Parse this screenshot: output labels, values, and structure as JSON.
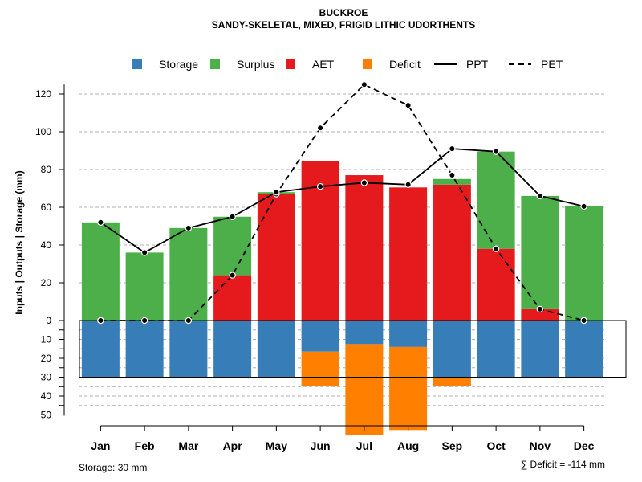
{
  "chart_data": {
    "type": "bar",
    "title": "BUCKROE",
    "subtitle": "SANDY-SKELETAL, MIXED, FRIGID LITHIC UDORTHENTS",
    "ylabel": "Inputs | Outputs | Storage    (mm)",
    "categories": [
      "Jan",
      "Feb",
      "Mar",
      "Apr",
      "May",
      "Jun",
      "Jul",
      "Aug",
      "Sep",
      "Oct",
      "Nov",
      "Dec"
    ],
    "ylim": [
      -50,
      125
    ],
    "yticks_upper": [
      0,
      20,
      40,
      60,
      80,
      100,
      120
    ],
    "yticks_lower": [
      10,
      20,
      30,
      40,
      50
    ],
    "gridlines_upper": [
      20,
      40,
      60,
      80,
      100,
      120
    ],
    "gridlines_lower": [
      5,
      10,
      15,
      20,
      25,
      35,
      40,
      45,
      50
    ],
    "legend": [
      {
        "label": "Storage",
        "kind": "box",
        "color": "#377EB8"
      },
      {
        "label": "Surplus",
        "kind": "box",
        "color": "#4DAF4A"
      },
      {
        "label": "AET",
        "kind": "box",
        "color": "#E41A1C"
      },
      {
        "label": "Deficit",
        "kind": "box",
        "color": "#FF7F00"
      },
      {
        "label": "PPT",
        "kind": "solid"
      },
      {
        "label": "PET",
        "kind": "dashed"
      }
    ],
    "series": [
      {
        "name": "AET",
        "color": "#E41A1C",
        "values": [
          0,
          0,
          0,
          24,
          67,
          84.5,
          77,
          70.5,
          72,
          38,
          6,
          0
        ]
      },
      {
        "name": "Surplus",
        "color": "#4DAF4A",
        "values": [
          52,
          36,
          49,
          31,
          1,
          0,
          0,
          0,
          3,
          51.5,
          60,
          60.5
        ]
      },
      {
        "name": "Storage",
        "color": "#377EB8",
        "values": [
          30,
          30,
          30,
          30,
          30,
          16.5,
          12.5,
          14,
          30,
          30,
          30,
          30
        ]
      },
      {
        "name": "Deficit",
        "color": "#FF7F00",
        "values": [
          0,
          0,
          0,
          0,
          0,
          18,
          48,
          44,
          4.5,
          0,
          0,
          0
        ]
      },
      {
        "name": "PPT",
        "style": "solid",
        "values": [
          52,
          36,
          49,
          55,
          68,
          71,
          73,
          72,
          91,
          89.5,
          66,
          60.5
        ]
      },
      {
        "name": "PET",
        "style": "dashed",
        "values": [
          0,
          0,
          0,
          24,
          67,
          102,
          125,
          114,
          77,
          38,
          6,
          0
        ]
      }
    ],
    "storage_capacity": 30,
    "storage_note": "Storage: 30 mm",
    "deficit_sum_label": "∑ Deficit = -114 mm"
  }
}
